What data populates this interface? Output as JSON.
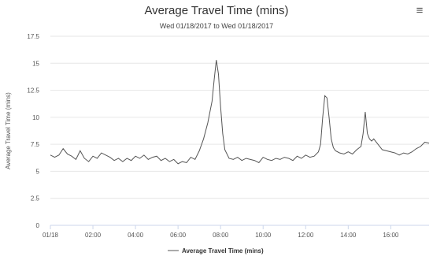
{
  "chart_data": {
    "type": "line",
    "title": "Average Travel Time (mins)",
    "subtitle": "Wed 01/18/2017 to Wed 01/18/2017",
    "ylabel": "Average Travel Time (mins)",
    "xlabel": "",
    "ylim": [
      0,
      17.5
    ],
    "xlim": [
      0,
      17.8
    ],
    "y_ticks": [
      0,
      2.5,
      5,
      7.5,
      10,
      12.5,
      15,
      17.5
    ],
    "y_tick_labels": [
      "0",
      "2.5",
      "5",
      "7.5",
      "10",
      "12.5",
      "15",
      "17.5"
    ],
    "x_ticks": [
      0,
      2,
      4,
      6,
      8,
      10,
      12,
      14,
      16
    ],
    "x_tick_labels": [
      "01/18",
      "02:00",
      "04:00",
      "06:00",
      "08:00",
      "10:00",
      "12:00",
      "14:00",
      "16:00"
    ],
    "grid": true,
    "legend_position": "bottom",
    "series": [
      {
        "name": "Average Travel Time (mins)",
        "color": "#555555",
        "x": [
          0,
          0.2,
          0.4,
          0.6,
          0.8,
          1.0,
          1.2,
          1.4,
          1.6,
          1.8,
          2.0,
          2.2,
          2.4,
          2.6,
          2.8,
          3.0,
          3.2,
          3.4,
          3.6,
          3.8,
          4.0,
          4.2,
          4.4,
          4.6,
          4.8,
          5.0,
          5.2,
          5.4,
          5.6,
          5.8,
          6.0,
          6.2,
          6.4,
          6.6,
          6.8,
          7.0,
          7.2,
          7.4,
          7.6,
          7.7,
          7.8,
          7.9,
          8.0,
          8.1,
          8.2,
          8.4,
          8.6,
          8.8,
          9.0,
          9.2,
          9.4,
          9.6,
          9.8,
          10.0,
          10.2,
          10.4,
          10.6,
          10.8,
          11.0,
          11.2,
          11.4,
          11.6,
          11.8,
          12.0,
          12.2,
          12.4,
          12.6,
          12.7,
          12.8,
          12.9,
          13.0,
          13.1,
          13.2,
          13.3,
          13.4,
          13.6,
          13.8,
          14.0,
          14.2,
          14.4,
          14.6,
          14.7,
          14.8,
          14.9,
          15.0,
          15.1,
          15.2,
          15.4,
          15.6,
          15.8,
          16.0,
          16.2,
          16.4,
          16.6,
          16.8,
          17.0,
          17.2,
          17.4,
          17.6,
          17.8
        ],
        "y": [
          6.5,
          6.3,
          6.5,
          7.1,
          6.6,
          6.4,
          6.1,
          6.9,
          6.2,
          5.9,
          6.4,
          6.2,
          6.7,
          6.5,
          6.3,
          6.0,
          6.2,
          5.9,
          6.2,
          6.0,
          6.4,
          6.2,
          6.5,
          6.1,
          6.3,
          6.4,
          6.0,
          6.2,
          5.9,
          6.1,
          5.7,
          5.9,
          5.8,
          6.3,
          6.1,
          6.9,
          8.0,
          9.5,
          11.5,
          13.5,
          15.3,
          14.0,
          11.0,
          8.5,
          7.0,
          6.2,
          6.1,
          6.3,
          6.0,
          6.2,
          6.1,
          6.0,
          5.8,
          6.3,
          6.1,
          6.0,
          6.2,
          6.1,
          6.3,
          6.2,
          6.0,
          6.4,
          6.2,
          6.5,
          6.3,
          6.4,
          6.8,
          7.5,
          10.0,
          12.0,
          11.8,
          10.0,
          8.0,
          7.2,
          6.9,
          6.7,
          6.6,
          6.8,
          6.6,
          7.0,
          7.3,
          8.5,
          10.5,
          8.5,
          8.0,
          7.8,
          8.0,
          7.5,
          7.0,
          6.9,
          6.8,
          6.7,
          6.5,
          6.7,
          6.6,
          6.8,
          7.1,
          7.3,
          7.7,
          7.6
        ]
      }
    ]
  },
  "toolbar": {
    "menu_icon": "hamburger-menu-icon",
    "menu_glyph": "≡"
  }
}
